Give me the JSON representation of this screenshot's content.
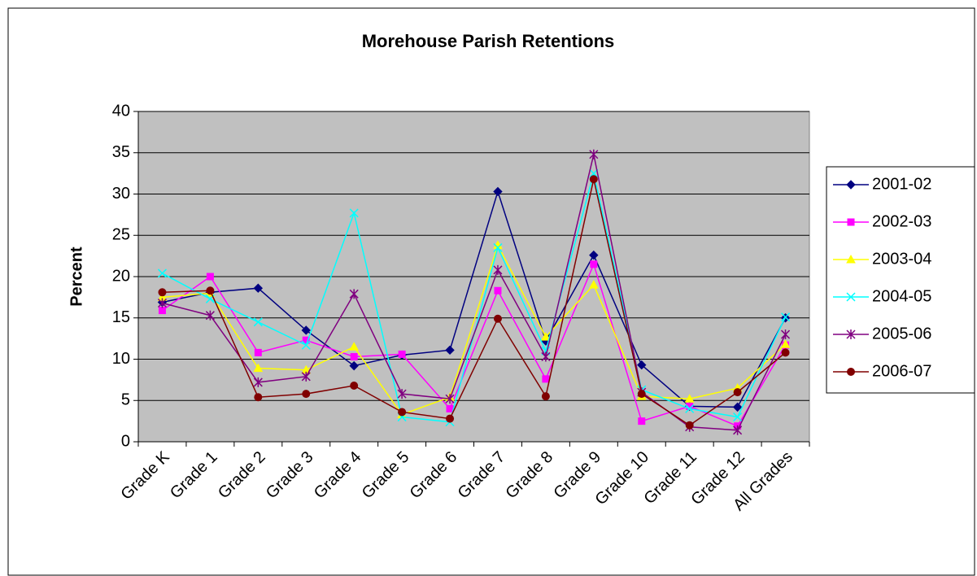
{
  "chart_data": {
    "type": "line",
    "title": "Morehouse Parish Retentions",
    "y_label": "Percent",
    "categories": [
      "Grade K",
      "Grade 1",
      "Grade 2",
      "Grade 3",
      "Grade 4",
      "Grade 5",
      "Grade 6",
      "Grade 7",
      "Grade 8",
      "Grade 9",
      "Grade 10",
      "Grade 11",
      "Grade 12",
      "All Grades"
    ],
    "ylim": [
      0,
      40
    ],
    "yticks": [
      0,
      5,
      10,
      15,
      20,
      25,
      30,
      35,
      40
    ],
    "grid": true,
    "legend": "right",
    "series": [
      {
        "name": "2001-02",
        "color": "#000080",
        "marker": "diamond",
        "values": [
          16.9,
          18.1,
          18.6,
          13.5,
          9.2,
          10.5,
          11.1,
          30.3,
          12.2,
          22.6,
          9.3,
          4.3,
          4.2,
          15.0
        ]
      },
      {
        "name": "2002-03",
        "color": "#ff00ff",
        "marker": "square",
        "values": [
          15.9,
          20.0,
          10.8,
          12.3,
          10.3,
          10.6,
          4.0,
          18.3,
          7.6,
          21.5,
          2.5,
          4.3,
          1.9,
          11.7
        ]
      },
      {
        "name": "2003-04",
        "color": "#ffff00",
        "marker": "triangle",
        "values": [
          17.5,
          18.0,
          8.9,
          8.7,
          11.5,
          3.3,
          5.4,
          23.8,
          12.7,
          19.0,
          5.5,
          5.2,
          6.5,
          11.8
        ]
      },
      {
        "name": "2004-05",
        "color": "#00ffff",
        "marker": "x",
        "values": [
          20.4,
          17.3,
          14.5,
          11.7,
          27.7,
          3.0,
          2.4,
          23.5,
          11.0,
          32.5,
          6.3,
          4.0,
          3.0,
          15.1
        ]
      },
      {
        "name": "2005-06",
        "color": "#800080",
        "marker": "star",
        "values": [
          16.8,
          15.3,
          7.2,
          7.9,
          17.9,
          5.8,
          5.2,
          20.8,
          10.3,
          34.8,
          6.0,
          1.8,
          1.4,
          13.0
        ]
      },
      {
        "name": "2006-07",
        "color": "#800000",
        "marker": "circle",
        "values": [
          18.1,
          18.3,
          5.4,
          5.8,
          6.8,
          3.6,
          2.8,
          14.9,
          5.5,
          31.8,
          5.8,
          2.0,
          6.0,
          10.8
        ]
      }
    ]
  }
}
